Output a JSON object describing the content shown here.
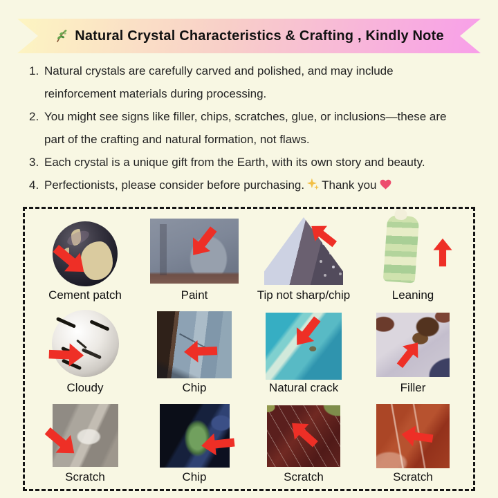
{
  "banner": {
    "icon": "herb-icon",
    "title": "Natural Crystal Characteristics & Crafting , Kindly Note"
  },
  "notes": [
    {
      "number": "1.",
      "text": "Natural crystals are carefully carved and polished, and may include reinforcement materials during processing.",
      "lines": [
        "Natural crystals are carefully carved and polished, and may include",
        "reinforcement materials during processing."
      ]
    },
    {
      "number": "2.",
      "text": "You might see signs like filler, chips, scratches, glue, or inclusions—these are part of the crafting and natural formation, not flaws.",
      "lines": [
        "You might see signs like filler, chips, scratches, glue, or inclusions—these are",
        "part of the crafting and natural formation, not flaws."
      ]
    },
    {
      "number": "3.",
      "text": "Each crystal is a unique gift from the Earth, with its own story and beauty.",
      "lines": [
        "Each crystal is a unique gift from the Earth, with its own story and beauty."
      ]
    },
    {
      "number": "4.",
      "text": "Perfectionists, please consider before purchasing.",
      "suffix": "Thank you",
      "icons": [
        "sparkles-icon",
        "heart-icon"
      ]
    }
  ],
  "defects_grid": {
    "items": [
      {
        "id": "cement-patch",
        "label": "Cement patch",
        "arrow": "down-right",
        "shape": "sphere"
      },
      {
        "id": "paint",
        "label": "Paint",
        "arrow": "down-left",
        "shape": "photo"
      },
      {
        "id": "tip-not-sharp",
        "label": "Tip not sharp/chip",
        "arrow": "up-left",
        "shape": "pyramid"
      },
      {
        "id": "leaning",
        "label": "Leaning",
        "arrow": "up",
        "shape": "tower"
      },
      {
        "id": "cloudy",
        "label": "Cloudy",
        "arrow": "right",
        "shape": "sphere"
      },
      {
        "id": "chip-edge",
        "label": "Chip",
        "arrow": "left",
        "shape": "photo"
      },
      {
        "id": "natural-crack",
        "label": "Natural crack",
        "arrow": "down-left",
        "shape": "photo"
      },
      {
        "id": "filler",
        "label": "Filler",
        "arrow": "up-right",
        "shape": "photo"
      },
      {
        "id": "scratch-gray",
        "label": "Scratch",
        "arrow": "down-right",
        "shape": "photo"
      },
      {
        "id": "chip-dark",
        "label": "Chip",
        "arrow": "left",
        "shape": "photo"
      },
      {
        "id": "scratch-red",
        "label": "Scratch",
        "arrow": "up-left",
        "shape": "photo"
      },
      {
        "id": "scratch-rust",
        "label": "Scratch",
        "arrow": "left",
        "shape": "photo"
      }
    ]
  },
  "colors": {
    "background": "#f8f7e3",
    "banner_gradient_start": "#fdf5c2",
    "banner_gradient_mid": "#f8cfc8",
    "banner_gradient_end": "#f89fe9",
    "arrow_red": "#ee2f26",
    "text": "#1f1f1f",
    "border": "#151515"
  }
}
